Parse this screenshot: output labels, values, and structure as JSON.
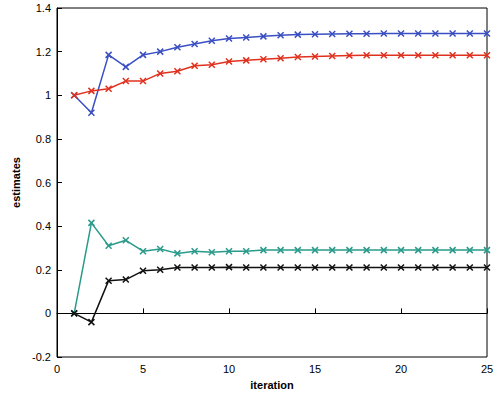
{
  "chart_data": {
    "type": "line",
    "x_label": "iteration",
    "y_label": "estimates",
    "x": [
      1,
      2,
      3,
      4,
      5,
      6,
      7,
      8,
      9,
      10,
      11,
      12,
      13,
      14,
      15,
      16,
      17,
      18,
      19,
      20,
      21,
      22,
      23,
      24,
      25
    ],
    "series": [
      {
        "color": "#3a4fc2",
        "marker": "x",
        "line_style": "solid",
        "values": [
          1.0,
          0.92,
          1.185,
          1.13,
          1.185,
          1.2,
          1.22,
          1.235,
          1.25,
          1.26,
          1.265,
          1.27,
          1.275,
          1.278,
          1.28,
          1.281,
          1.282,
          1.282,
          1.283,
          1.283,
          1.283,
          1.283,
          1.283,
          1.283,
          1.283
        ]
      },
      {
        "color": "#e0301e",
        "marker": "x",
        "line_style": "solid",
        "values": [
          1.0,
          1.02,
          1.03,
          1.065,
          1.065,
          1.1,
          1.11,
          1.135,
          1.14,
          1.155,
          1.16,
          1.165,
          1.17,
          1.175,
          1.178,
          1.18,
          1.182,
          1.183,
          1.183,
          1.183,
          1.183,
          1.183,
          1.183,
          1.183,
          1.183
        ]
      },
      {
        "color": "#2a9a8a",
        "marker": "x",
        "line_style": "solid",
        "values": [
          0.0,
          0.415,
          0.31,
          0.335,
          0.285,
          0.295,
          0.275,
          0.285,
          0.28,
          0.285,
          0.285,
          0.29,
          0.29,
          0.29,
          0.29,
          0.29,
          0.29,
          0.29,
          0.29,
          0.29,
          0.29,
          0.29,
          0.29,
          0.29,
          0.29
        ]
      },
      {
        "color": "#111111",
        "marker": "x",
        "line_style": "solid",
        "values": [
          0.0,
          -0.04,
          0.15,
          0.155,
          0.195,
          0.2,
          0.21,
          0.21,
          0.21,
          0.212,
          0.21,
          0.21,
          0.21,
          0.21,
          0.21,
          0.21,
          0.21,
          0.21,
          0.21,
          0.21,
          0.21,
          0.21,
          0.21,
          0.21,
          0.21
        ]
      }
    ],
    "xlim": [
      0,
      25
    ],
    "xticks": [
      0,
      5,
      10,
      15,
      20,
      25
    ],
    "ylim": [
      -0.2,
      1.4
    ],
    "yticks": [
      -0.2,
      0,
      0.2,
      0.4,
      0.6,
      0.8,
      1,
      1.2,
      1.4
    ],
    "grid": false
  }
}
